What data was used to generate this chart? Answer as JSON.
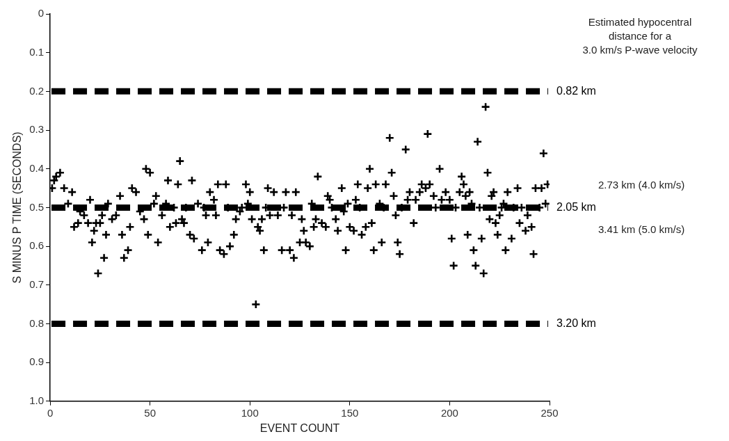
{
  "chart_data": {
    "type": "scatter",
    "xlabel": "EVENT COUNT",
    "ylabel": "S MINUS P TIME (SECONDS)",
    "xlim": [
      0,
      250
    ],
    "xticks": [
      0,
      50,
      100,
      150,
      200,
      250
    ],
    "ylim": [
      1.0,
      0
    ],
    "yticks": [
      0,
      0.1,
      0.2,
      0.3,
      0.4,
      0.5,
      0.6,
      0.7,
      0.8,
      0.9,
      {
        "value": 1.0,
        "label": "1.0"
      }
    ],
    "grid": false,
    "legend": false,
    "marker": "cross",
    "series": [
      {
        "color": "#000000",
        "x": [
          1,
          2,
          3,
          5,
          7,
          9,
          11,
          12,
          14,
          15,
          17,
          19,
          20,
          21,
          22,
          23,
          24,
          25,
          26,
          27,
          28,
          29,
          31,
          33,
          35,
          36,
          37,
          39,
          40,
          41,
          43,
          45,
          47,
          48,
          49,
          50,
          52,
          53,
          54,
          56,
          58,
          59,
          60,
          62,
          63,
          64,
          65,
          66,
          67,
          68,
          70,
          71,
          72,
          74,
          76,
          77,
          78,
          79,
          80,
          82,
          83,
          84,
          85,
          87,
          88,
          89,
          90,
          92,
          93,
          95,
          96,
          98,
          99,
          100,
          101,
          103,
          104,
          105,
          106,
          107,
          108,
          109,
          110,
          112,
          114,
          116,
          117,
          118,
          120,
          121,
          122,
          123,
          125,
          126,
          127,
          128,
          130,
          131,
          132,
          133,
          134,
          136,
          138,
          139,
          140,
          141,
          143,
          144,
          146,
          147,
          148,
          149,
          150,
          152,
          153,
          154,
          155,
          156,
          158,
          159,
          160,
          161,
          162,
          163,
          165,
          166,
          167,
          168,
          170,
          171,
          172,
          173,
          174,
          175,
          176,
          178,
          179,
          180,
          182,
          183,
          185,
          186,
          188,
          189,
          190,
          192,
          193,
          195,
          196,
          198,
          200,
          201,
          202,
          203,
          205,
          206,
          207,
          208,
          209,
          210,
          211,
          212,
          213,
          214,
          215,
          216,
          217,
          218,
          219,
          220,
          221,
          222,
          223,
          224,
          225,
          226,
          227,
          228,
          229,
          231,
          232,
          234,
          235,
          236,
          238,
          239,
          241,
          242,
          243,
          245,
          246,
          247,
          248,
          249
        ],
        "values": [
          0.45,
          0.43,
          0.42,
          0.41,
          0.45,
          0.49,
          0.46,
          0.55,
          0.54,
          0.51,
          0.52,
          0.54,
          0.48,
          0.59,
          0.56,
          0.54,
          0.67,
          0.54,
          0.52,
          0.63,
          0.57,
          0.49,
          0.53,
          0.52,
          0.47,
          0.57,
          0.63,
          0.61,
          0.55,
          0.45,
          0.46,
          0.51,
          0.53,
          0.4,
          0.57,
          0.41,
          0.49,
          0.47,
          0.59,
          0.52,
          0.49,
          0.43,
          0.55,
          0.5,
          0.54,
          0.44,
          0.38,
          0.53,
          0.54,
          0.5,
          0.57,
          0.43,
          0.58,
          0.49,
          0.61,
          0.5,
          0.52,
          0.59,
          0.46,
          0.48,
          0.52,
          0.44,
          0.61,
          0.62,
          0.44,
          0.5,
          0.6,
          0.57,
          0.53,
          0.51,
          0.5,
          0.44,
          0.49,
          0.46,
          0.53,
          0.75,
          0.55,
          0.56,
          0.53,
          0.61,
          0.5,
          0.45,
          0.52,
          0.46,
          0.52,
          0.61,
          0.5,
          0.46,
          0.61,
          0.52,
          0.63,
          0.46,
          0.59,
          0.53,
          0.56,
          0.59,
          0.6,
          0.49,
          0.55,
          0.53,
          0.42,
          0.54,
          0.55,
          0.47,
          0.48,
          0.5,
          0.53,
          0.56,
          0.45,
          0.51,
          0.61,
          0.49,
          0.55,
          0.56,
          0.48,
          0.44,
          0.5,
          0.57,
          0.55,
          0.45,
          0.4,
          0.54,
          0.61,
          0.44,
          0.49,
          0.59,
          0.5,
          0.44,
          0.32,
          0.41,
          0.47,
          0.52,
          0.59,
          0.62,
          0.5,
          0.35,
          0.48,
          0.46,
          0.54,
          0.48,
          0.46,
          0.44,
          0.45,
          0.31,
          0.44,
          0.47,
          0.5,
          0.4,
          0.48,
          0.46,
          0.48,
          0.58,
          0.65,
          0.5,
          0.46,
          0.42,
          0.44,
          0.47,
          0.57,
          0.46,
          0.49,
          0.61,
          0.65,
          0.33,
          0.5,
          0.58,
          0.67,
          0.24,
          0.41,
          0.53,
          0.47,
          0.46,
          0.54,
          0.57,
          0.52,
          0.5,
          0.49,
          0.61,
          0.46,
          0.58,
          0.5,
          0.45,
          0.54,
          0.5,
          0.56,
          0.52,
          0.55,
          0.62,
          0.45,
          0.5,
          0.45,
          0.36,
          0.49,
          0.44
        ]
      }
    ],
    "ref_lines": [
      {
        "axis": "y",
        "value": 0.2,
        "label": "0.82 km",
        "color": "#000000",
        "line_style": "dashed"
      },
      {
        "axis": "y",
        "value": 0.5,
        "label": "2.05 km",
        "color": "#000000",
        "line_style": "dashed"
      },
      {
        "axis": "y",
        "value": 0.8,
        "label": "3.20 km",
        "color": "#000000",
        "line_style": "dashed"
      }
    ],
    "annotations": [
      "Estimated hypocentral\ndistance for a\n3.0 km/s P-wave velocity",
      "2.73 km (4.0 km/s)",
      "3.41 km (5.0 km/s)"
    ]
  }
}
